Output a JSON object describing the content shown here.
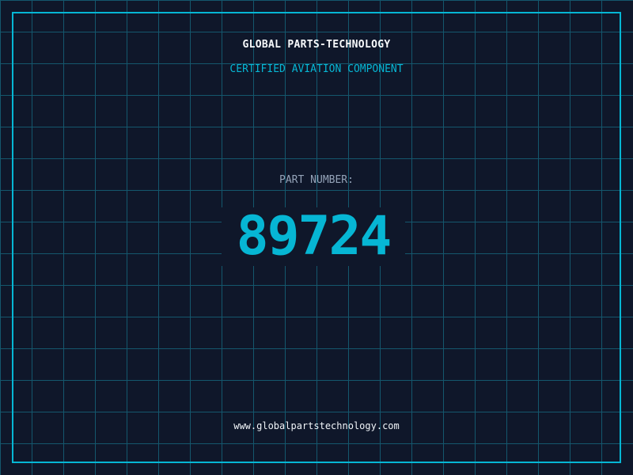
{
  "header": {
    "title": "GLOBAL PARTS-TECHNOLOGY",
    "subtitle": "CERTIFIED AVIATION COMPONENT"
  },
  "part": {
    "label": "PART NUMBER:",
    "number": "89724"
  },
  "footer": {
    "url": "www.globalpartstechnology.com"
  },
  "colors": {
    "background": "#0f172a",
    "accent": "#06b6d4",
    "grid": "#155e75"
  }
}
